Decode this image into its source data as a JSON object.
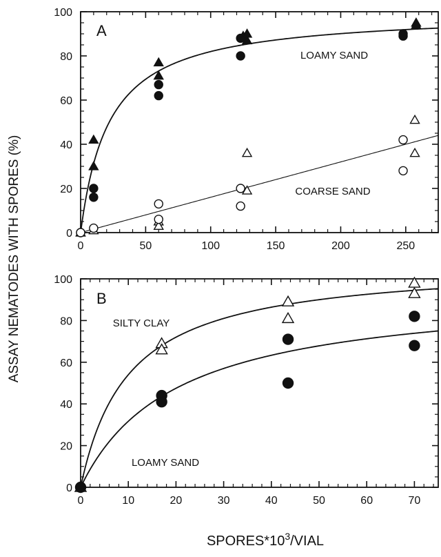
{
  "figure": {
    "ylabel": "ASSAY NEMATODES WITH SPORES (%)",
    "xlabel_main": "SPORES*10",
    "xlabel_sup": "3",
    "xlabel_tail": "/VIAL"
  },
  "chart_data": [
    {
      "type": "scatter",
      "panel": "A",
      "xlim": [
        0,
        275
      ],
      "ylim": [
        0,
        100
      ],
      "xticks": [
        0,
        50,
        100,
        150,
        200,
        250
      ],
      "yticks": [
        0,
        20,
        40,
        60,
        80,
        100
      ],
      "annotations": [
        "LOAMY SAND",
        "COARSE SAND"
      ],
      "series": [
        {
          "marker": "filled-triangle",
          "points": [
            [
              0,
              0
            ],
            [
              10,
              42
            ],
            [
              10,
              30
            ],
            [
              60,
              77
            ],
            [
              60,
              71
            ],
            [
              125,
              89
            ],
            [
              128,
              90
            ],
            [
              128,
              87
            ],
            [
              258,
              95
            ],
            [
              258,
              94
            ]
          ]
        },
        {
          "marker": "filled-circle",
          "points": [
            [
              0,
              0
            ],
            [
              10,
              20
            ],
            [
              10,
              16
            ],
            [
              60,
              67
            ],
            [
              60,
              62
            ],
            [
              123,
              88
            ],
            [
              123,
              80
            ],
            [
              248,
              90
            ],
            [
              248,
              89
            ]
          ]
        },
        {
          "marker": "open-triangle",
          "points": [
            [
              0,
              0
            ],
            [
              10,
              1
            ],
            [
              60,
              5
            ],
            [
              60,
              3
            ],
            [
              128,
              36
            ],
            [
              128,
              19
            ],
            [
              257,
              51
            ],
            [
              257,
              36
            ]
          ]
        },
        {
          "marker": "open-circle",
          "points": [
            [
              0,
              0
            ],
            [
              10,
              2
            ],
            [
              60,
              13
            ],
            [
              60,
              6
            ],
            [
              123,
              20
            ],
            [
              123,
              12
            ],
            [
              248,
              42
            ],
            [
              248,
              28
            ]
          ]
        }
      ],
      "fits": [
        {
          "label": "LOAMY SAND",
          "kind": "saturation",
          "max": 100,
          "half": 22
        },
        {
          "label": "COARSE SAND",
          "kind": "linear",
          "slope": 0.16
        }
      ]
    },
    {
      "type": "scatter",
      "panel": "B",
      "xlim": [
        0,
        75
      ],
      "ylim": [
        0,
        100
      ],
      "xticks": [
        0,
        10,
        20,
        30,
        40,
        50,
        60,
        70
      ],
      "yticks": [
        0,
        20,
        40,
        60,
        80,
        100
      ],
      "annotations": [
        "SILTY CLAY",
        "LOAMY SAND"
      ],
      "series": [
        {
          "marker": "open-triangle",
          "points": [
            [
              0,
              0
            ],
            [
              17,
              69
            ],
            [
              17,
              66
            ],
            [
              43.5,
              89
            ],
            [
              43.5,
              81
            ],
            [
              70,
              98
            ],
            [
              70,
              93
            ]
          ]
        },
        {
          "marker": "filled-circle",
          "points": [
            [
              0,
              0
            ],
            [
              17,
              44
            ],
            [
              17,
              41
            ],
            [
              43.5,
              71
            ],
            [
              43.5,
              50
            ],
            [
              70,
              82
            ],
            [
              70,
              68
            ]
          ]
        }
      ],
      "fits": [
        {
          "label": "SILTY CLAY",
          "kind": "saturation",
          "max": 108,
          "half": 10
        },
        {
          "label": "LOAMY SAND",
          "kind": "saturation",
          "max": 95,
          "half": 20
        }
      ]
    }
  ]
}
